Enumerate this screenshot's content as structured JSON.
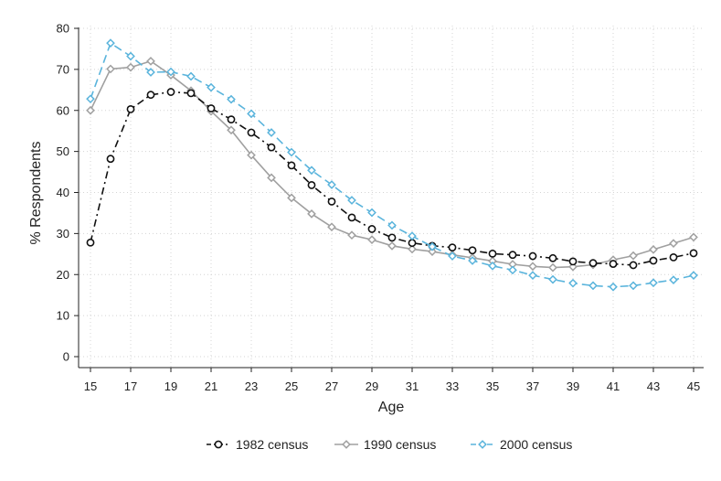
{
  "chart_data": {
    "type": "line",
    "xlabel": "Age",
    "ylabel": "% Respondents",
    "xlim": [
      15,
      45
    ],
    "ylim": [
      0,
      80
    ],
    "xticks": [
      "15",
      "17",
      "19",
      "21",
      "23",
      "25",
      "27",
      "29",
      "31",
      "33",
      "35",
      "37",
      "39",
      "41",
      "43",
      "45"
    ],
    "yticks": [
      "0",
      "10",
      "20",
      "30",
      "40",
      "50",
      "60",
      "70",
      "80"
    ],
    "grid": true,
    "legend_position": "bottom",
    "x": [
      15,
      16,
      17,
      18,
      19,
      20,
      21,
      22,
      23,
      24,
      25,
      26,
      27,
      28,
      29,
      30,
      31,
      32,
      33,
      34,
      35,
      36,
      37,
      38,
      39,
      40,
      41,
      42,
      43,
      44,
      45
    ],
    "series": [
      {
        "name": "1982 census",
        "color": "#111111",
        "marker": "circle",
        "dash": "8 4 2 4",
        "values": [
          27.8,
          48.2,
          60.3,
          63.8,
          64.5,
          64.2,
          60.5,
          57.8,
          54.6,
          51.0,
          46.6,
          41.8,
          37.8,
          33.9,
          31.1,
          29.0,
          27.7,
          27.0,
          26.6,
          25.9,
          25.1,
          24.8,
          24.5,
          24.0,
          23.2,
          22.8,
          22.6,
          22.3,
          23.4,
          24.2,
          25.2
        ]
      },
      {
        "name": "1990 census",
        "color": "#a0a0a0",
        "marker": "diamond",
        "dash": "",
        "values": [
          60.0,
          70.1,
          70.5,
          72.0,
          68.6,
          64.8,
          59.8,
          55.2,
          49.1,
          43.6,
          38.7,
          34.8,
          31.6,
          29.6,
          28.5,
          27.0,
          26.2,
          25.6,
          24.8,
          24.1,
          23.3,
          22.5,
          22.0,
          21.7,
          21.9,
          22.4,
          23.6,
          24.6,
          26.1,
          27.6,
          29.1
        ]
      },
      {
        "name": "2000 census",
        "color": "#5ab4dc",
        "marker": "diamond",
        "dash": "9 5",
        "values": [
          62.8,
          76.4,
          73.2,
          69.3,
          69.4,
          68.3,
          65.6,
          62.7,
          59.2,
          54.6,
          49.8,
          45.4,
          41.9,
          38.1,
          35.1,
          32.0,
          29.4,
          26.8,
          24.5,
          23.4,
          22.1,
          21.1,
          19.8,
          18.8,
          17.9,
          17.3,
          17.0,
          17.3,
          18.0,
          18.7,
          19.8
        ]
      }
    ]
  }
}
